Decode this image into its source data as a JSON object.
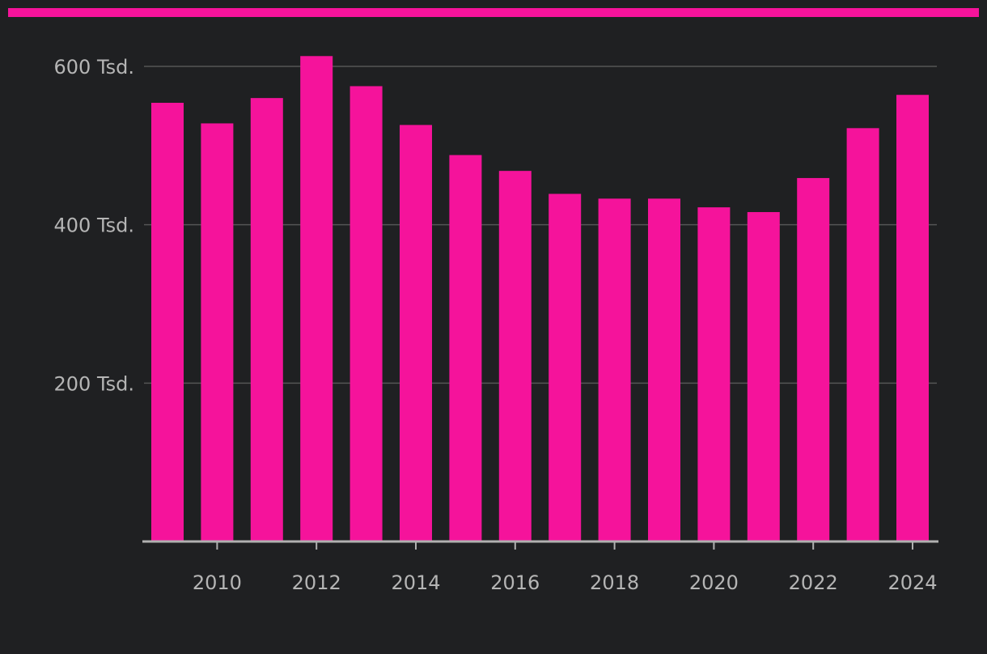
{
  "colors": {
    "background": "#1f2022",
    "accent": "#f5139b",
    "bar": "#f5139b",
    "gridline": "#555555",
    "axis": "#b0b0b0",
    "tick_text": "#b5b5b5"
  },
  "chart_data": {
    "type": "bar",
    "title": "",
    "xlabel": "",
    "ylabel": "",
    "categories": [
      "2009",
      "2010",
      "2011",
      "2012",
      "2013",
      "2014",
      "2015",
      "2016",
      "2017",
      "2018",
      "2019",
      "2020",
      "2021",
      "2022",
      "2023",
      "2024"
    ],
    "values": [
      554000,
      528000,
      560000,
      613000,
      575000,
      526000,
      488000,
      468000,
      439000,
      433000,
      433000,
      422000,
      416000,
      459000,
      522000,
      564000
    ],
    "ylim": [
      0,
      600000
    ],
    "y_ticks": [
      {
        "value": 200000,
        "label": "200 Tsd."
      },
      {
        "value": 400000,
        "label": "400 Tsd."
      },
      {
        "value": 600000,
        "label": "600 Tsd."
      }
    ],
    "x_tick_labels": [
      "2010",
      "2012",
      "2014",
      "2016",
      "2018",
      "2020",
      "2022",
      "2024"
    ],
    "grid": true,
    "legend": "none"
  }
}
